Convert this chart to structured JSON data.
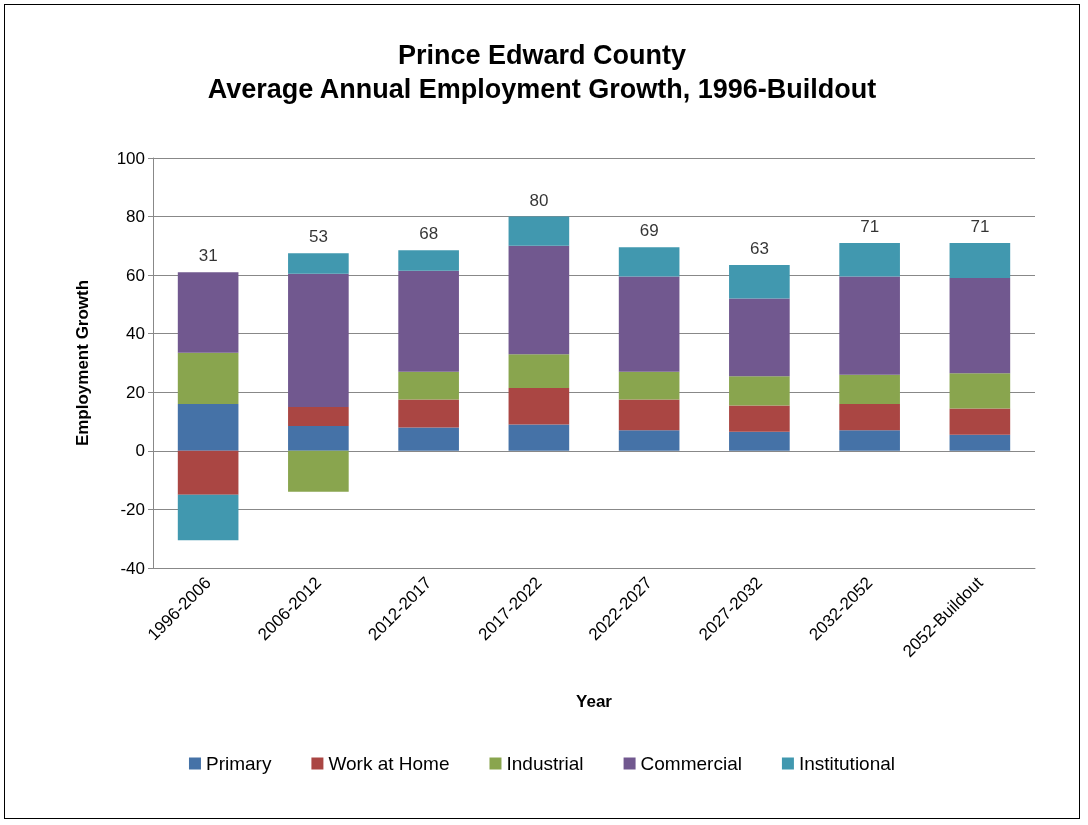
{
  "chart_data": {
    "type": "bar",
    "title": "Prince Edward County\nAverage Annual Employment Growth, 1996-Buildout",
    "xlabel": "Year",
    "ylabel": "Employment Growth",
    "categories": [
      "1996-2006",
      "2006-2012",
      "2012-2017",
      "2017-2022",
      "2022-2027",
      "2027-2032",
      "2032-2052",
      "2052-Buildout"
    ],
    "series": [
      {
        "name": "Primary",
        "color": "#4572a7",
        "values": [
          16,
          8.5,
          8,
          9,
          7,
          6.5,
          7,
          5.5
        ]
      },
      {
        "name": "Work at Home",
        "color": "#aa4643",
        "values": [
          -15,
          6.5,
          9.5,
          12.5,
          10.5,
          9,
          9,
          9
        ]
      },
      {
        "name": "Industrial",
        "color": "#89a54e",
        "values": [
          17.5,
          -14,
          9.5,
          11.5,
          9.5,
          10,
          10,
          12
        ]
      },
      {
        "name": "Commercial",
        "color": "#71588f",
        "values": [
          27.5,
          45.5,
          34.5,
          37,
          32.5,
          26.5,
          33.5,
          32.5
        ]
      },
      {
        "name": "Institutional",
        "color": "#4198af",
        "values": [
          -15.5,
          7,
          7,
          10,
          10,
          11.5,
          11.5,
          12
        ]
      }
    ],
    "stacked": true,
    "totals": [
      "31",
      "53",
      "68",
      "80",
      "69",
      "63",
      "71",
      "71"
    ],
    "ylim": [
      -40,
      100
    ],
    "yticks": [
      -40,
      -20,
      0,
      20,
      40,
      60,
      80,
      100
    ],
    "grid": "y",
    "legend": "bottom"
  }
}
